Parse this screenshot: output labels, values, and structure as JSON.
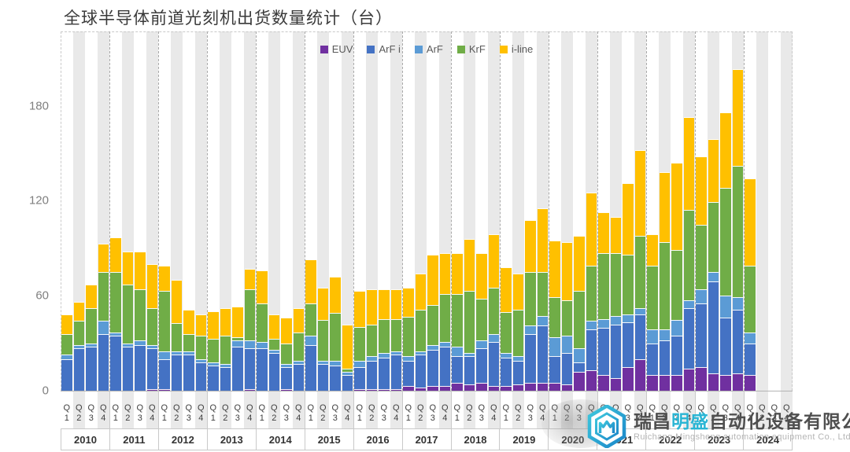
{
  "title": "全球半导体前道光刻机出货数量统计（台）",
  "watermark": {
    "logo": "hexagon-cube-logo",
    "name_prefix": "瑞昌",
    "name_highlight": "明盛",
    "name_suffix": "自动化设备有限公司",
    "subtitle": "Ruichang Mingsheng automation equipment Co., Ltd",
    "highlight_color": "#2ab5d4",
    "text_color": "#4f4f4f",
    "subtitle_color": "#b5b5b5"
  },
  "chart_data": {
    "type": "bar",
    "stacked": true,
    "title": "全球半导体前道光刻机出货数量统计（台）",
    "xlabel": "",
    "ylabel": "",
    "ylim": [
      0,
      227
    ],
    "yticks": [
      0,
      60,
      120,
      180
    ],
    "grid": "vertical dashed separators at year boundaries; alternating quarter background stripes",
    "legend_position": "top-center",
    "background_stripe_color": "#e9e9e9",
    "years": [
      "2010",
      "2011",
      "2012",
      "2013",
      "2014",
      "2015",
      "2016",
      "2017",
      "2018",
      "2019",
      "2020",
      "2021",
      "2022",
      "2023",
      "2024"
    ],
    "quarter_labels": [
      "Q1",
      "Q2",
      "Q3",
      "Q4"
    ],
    "axis_slots": 60,
    "quarters_with_data": 57,
    "first_quarter": "2010 Q1",
    "last_quarter": "2024 Q1",
    "series": [
      {
        "name": "EUV",
        "color": "#7030A0",
        "values": [
          0,
          0,
          0,
          0,
          0,
          0,
          0,
          1,
          1,
          0,
          0,
          0,
          0,
          0,
          0,
          1,
          0,
          0,
          1,
          0,
          0,
          0,
          0,
          0,
          1,
          1,
          1,
          1,
          3,
          2,
          3,
          3,
          5,
          4,
          5,
          3,
          3,
          4,
          5,
          5,
          5,
          4,
          12,
          13,
          10,
          8,
          15,
          20,
          10,
          10,
          10,
          14,
          15,
          11,
          10,
          11,
          10
        ]
      },
      {
        "name": "ArF i",
        "color": "#4472C4",
        "values": [
          20,
          27,
          28,
          36,
          35,
          28,
          29,
          26,
          19,
          23,
          23,
          18,
          16,
          15,
          28,
          26,
          27,
          24,
          14,
          17,
          29,
          17,
          16,
          10,
          14,
          18,
          20,
          22,
          16,
          21,
          23,
          25,
          17,
          18,
          22,
          28,
          18,
          15,
          31,
          36,
          17,
          20,
          6,
          26,
          30,
          34,
          28,
          28,
          20,
          22,
          25,
          38,
          40,
          58,
          36,
          40,
          20
        ]
      },
      {
        "name": "ArF",
        "color": "#5B9BD5",
        "values": [
          3,
          2,
          2,
          8,
          2,
          2,
          3,
          2,
          5,
          2,
          2,
          2,
          2,
          2,
          4,
          5,
          4,
          2,
          2,
          2,
          6,
          2,
          3,
          2,
          4,
          3,
          3,
          2,
          3,
          2,
          3,
          3,
          6,
          2,
          5,
          5,
          3,
          3,
          5,
          6,
          12,
          11,
          9,
          5,
          5,
          5,
          5,
          4,
          9,
          7,
          10,
          5,
          9,
          6,
          14,
          8,
          7
        ]
      },
      {
        "name": "KrF",
        "color": "#70AD47",
        "values": [
          13,
          15,
          22,
          31,
          38,
          37,
          32,
          23,
          38,
          18,
          11,
          15,
          15,
          18,
          2,
          32,
          24,
          7,
          13,
          18,
          20,
          26,
          30,
          2,
          21,
          20,
          21,
          20,
          25,
          26,
          25,
          30,
          33,
          39,
          26,
          29,
          26,
          29,
          34,
          28,
          25,
          22,
          36,
          35,
          42,
          40,
          38,
          46,
          40,
          55,
          44,
          57,
          41,
          44,
          68,
          83,
          42
        ]
      },
      {
        "name": "i-line",
        "color": "#FFC000",
        "values": [
          12,
          12,
          15,
          18,
          22,
          21,
          24,
          28,
          16,
          27,
          15,
          13,
          17,
          17,
          19,
          13,
          21,
          15,
          16,
          15,
          28,
          20,
          23,
          28,
          23,
          22,
          19,
          19,
          18,
          23,
          32,
          26,
          26,
          33,
          29,
          34,
          28,
          23,
          33,
          40,
          36,
          37,
          35,
          46,
          26,
          23,
          45,
          54,
          20,
          44,
          55,
          59,
          43,
          40,
          48,
          61,
          55
        ]
      }
    ]
  }
}
